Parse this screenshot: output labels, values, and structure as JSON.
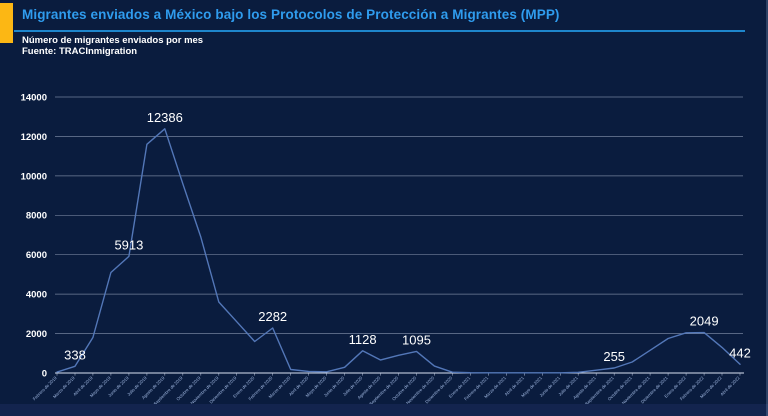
{
  "header": {
    "title": "Migrantes enviados a México bajo los Protocolos de Protección a Migrantes (MPP)",
    "subtitle": "Número de migrantes enviados por mes",
    "source": "Fuente: TRACInmigration"
  },
  "colors": {
    "background": "#0A1C3E",
    "accent_bar": "#FCB714",
    "title_text": "#2F9CEE",
    "title_rule": "#1E86CC",
    "series_line": "#5377B8",
    "gridline": "#C7D2E8",
    "axis_line": "#D9E2F2",
    "y_tick_text": "#FFFFFF",
    "x_tick_text": "#9FB6DF",
    "value_label_text": "#FFFFFF"
  },
  "chart_data": {
    "type": "line",
    "title": "Migrantes enviados a México bajo los Protocolos de Protección a Migrantes (MPP)",
    "xlabel": "",
    "ylabel": "Número de migrantes enviados por mes",
    "ylim": [
      0,
      14000
    ],
    "yticks": [
      0,
      2000,
      4000,
      6000,
      8000,
      10000,
      12000,
      14000
    ],
    "grid": "horizontal",
    "legend": "none",
    "x": [
      "Febrero de 2019",
      "Marzo de 2019",
      "Abril de 2019",
      "Mayo de 2019",
      "Junio de 2019",
      "Julio de 2019",
      "Agosto de 2019",
      "Septiembre de 2019",
      "Octubre de 2019",
      "Noviembre de 2019",
      "Diciembre de 2019",
      "Enero de 2020",
      "Febrero de 2020",
      "Marzo de 2020",
      "Abril de 2020",
      "Mayo de 2020",
      "Junio de 2020",
      "Julio de 2020",
      "Agosto de 2020",
      "Septiembre de 2020",
      "Octubre de 2020",
      "Noviembre de 2020",
      "Diciembre de 2020",
      "Enero de 2021",
      "Febrero de 2021",
      "Marzo de 2021",
      "Abril de 2021",
      "Mayo de 2021",
      "Junio de 2021",
      "Julio de 2021",
      "Agosto de 2021",
      "Septiembre de 2021",
      "Octubre de 2021",
      "Noviembre de 2021",
      "Diciembre de 2021",
      "Enero de 2022",
      "Febrero de 2022",
      "Marzo de 2022",
      "Abril de 2022"
    ],
    "values": [
      45,
      338,
      1800,
      5100,
      5913,
      11600,
      12386,
      9600,
      6900,
      3600,
      2600,
      1600,
      2282,
      180,
      80,
      60,
      290,
      1128,
      660,
      900,
      1095,
      350,
      40,
      15,
      10,
      8,
      8,
      8,
      10,
      35,
      140,
      255,
      560,
      1150,
      1750,
      2040,
      2049,
      1300,
      442
    ],
    "labeled_points": [
      {
        "index": 1,
        "value": 338
      },
      {
        "index": 4,
        "value": 5913
      },
      {
        "index": 6,
        "value": 12386
      },
      {
        "index": 12,
        "value": 2282
      },
      {
        "index": 17,
        "value": 1128
      },
      {
        "index": 20,
        "value": 1095
      },
      {
        "index": 31,
        "value": 255
      },
      {
        "index": 36,
        "value": 2049
      },
      {
        "index": 38,
        "value": 442
      }
    ]
  }
}
